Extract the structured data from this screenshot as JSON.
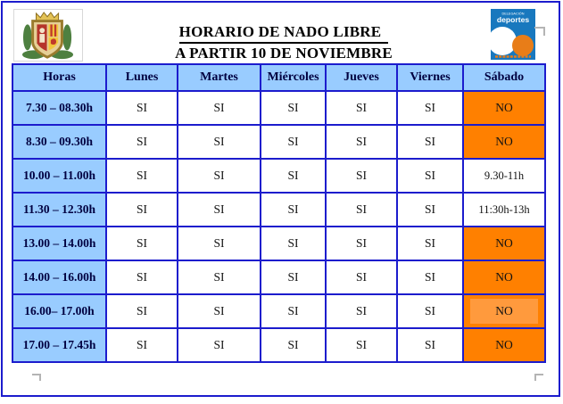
{
  "header": {
    "title_line1": "HORARIO DE NADO LIBRE",
    "title_line2": "A PARTIR 10 DE NOVIEMBRE"
  },
  "logo": {
    "line1": "DELEGACIÓN",
    "line2": "deportes"
  },
  "table": {
    "columns": [
      "Horas",
      "Lunes",
      "Martes",
      "Miércoles",
      "Jueves",
      "Viernes",
      "Sábado"
    ],
    "rows": [
      {
        "hora": "7.30 – 08.30h",
        "weekdays": [
          "SI",
          "SI",
          "SI",
          "SI",
          "SI"
        ],
        "sabado": "NO",
        "sabado_style": "no"
      },
      {
        "hora": "8.30 – 09.30h",
        "weekdays": [
          "SI",
          "SI",
          "SI",
          "SI",
          "SI"
        ],
        "sabado": "NO",
        "sabado_style": "no"
      },
      {
        "hora": "10.00 – 11.00h",
        "weekdays": [
          "SI",
          "SI",
          "SI",
          "SI",
          "SI"
        ],
        "sabado": "9.30-11h",
        "sabado_style": "time"
      },
      {
        "hora": "11.30 – 12.30h",
        "weekdays": [
          "SI",
          "SI",
          "SI",
          "SI",
          "SI"
        ],
        "sabado": "11:30h-13h",
        "sabado_style": "time"
      },
      {
        "hora": "13.00 – 14.00h",
        "weekdays": [
          "SI",
          "SI",
          "SI",
          "SI",
          "SI"
        ],
        "sabado": "NO",
        "sabado_style": "no"
      },
      {
        "hora": "14.00 – 16.00h",
        "weekdays": [
          "SI",
          "SI",
          "SI",
          "SI",
          "SI"
        ],
        "sabado": "NO",
        "sabado_style": "no"
      },
      {
        "hora": "16.00– 17.00h",
        "weekdays": [
          "SI",
          "SI",
          "SI",
          "SI",
          "SI"
        ],
        "sabado": "NO",
        "sabado_style": "no-light"
      },
      {
        "hora": "17.00 – 17.45h",
        "weekdays": [
          "SI",
          "SI",
          "SI",
          "SI",
          "SI"
        ],
        "sabado": "NO",
        "sabado_style": "no"
      }
    ]
  },
  "colors": {
    "cell_blue": "#99CCFF",
    "border_blue": "#1c1ccd",
    "orange": "#FF8000",
    "orange_light": "#FF9A3D",
    "logo_blue": "#1878BE",
    "logo_orange": "#E87D18",
    "header_text": "#000040",
    "mark_gray": "#b4b4b4"
  }
}
